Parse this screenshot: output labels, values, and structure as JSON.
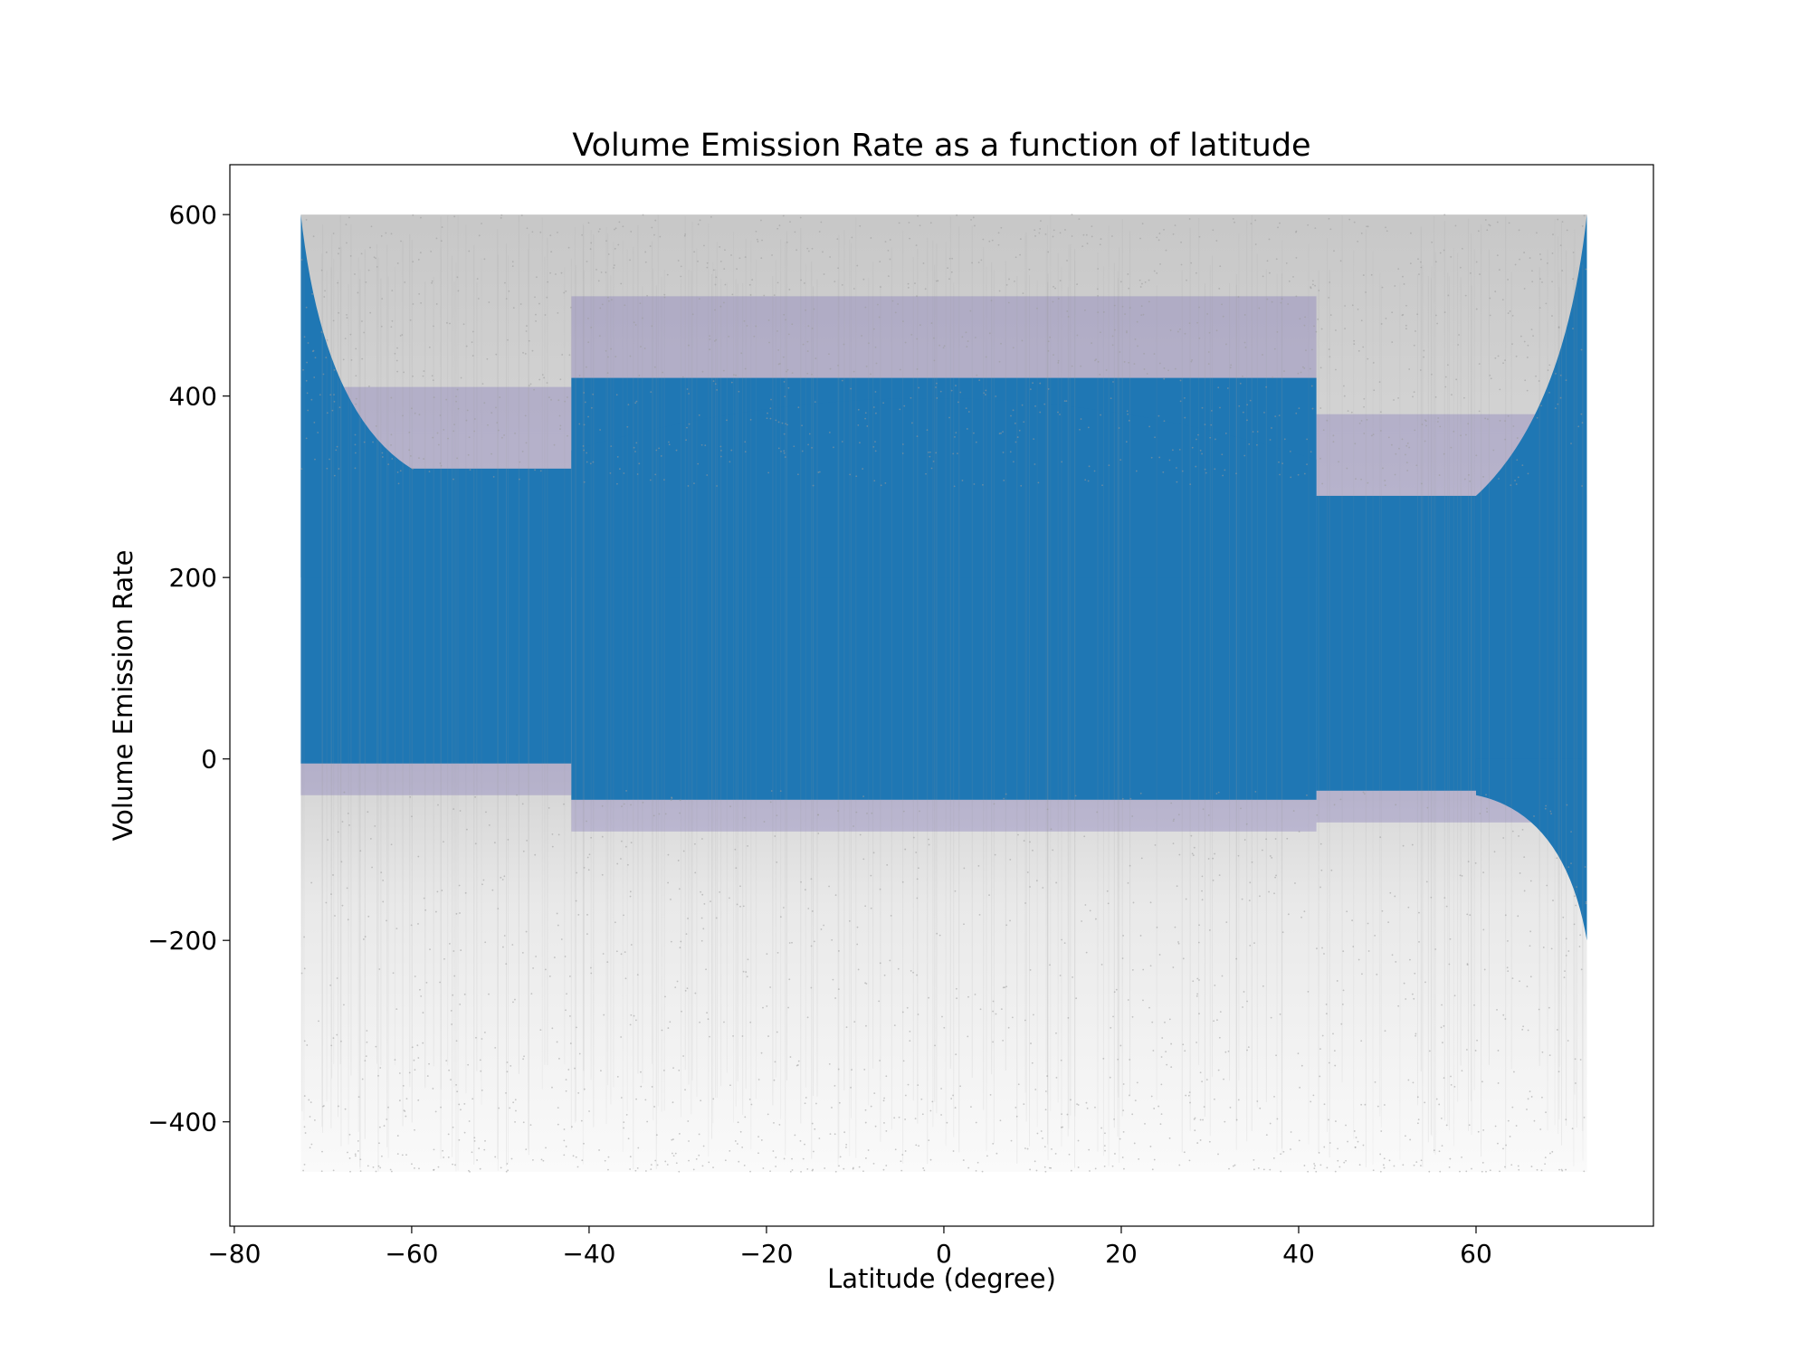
{
  "chart_data": {
    "type": "scatter",
    "title": "Volume Emission Rate as a function of latitude",
    "xlabel": "Latitude (degree)",
    "ylabel": "Volume Emission Rate",
    "xlim": [
      -80.5,
      80
    ],
    "ylim": [
      -515,
      655
    ],
    "xticks": [
      {
        "value": -80,
        "label": "−80"
      },
      {
        "value": -60,
        "label": "−60"
      },
      {
        "value": -40,
        "label": "−40"
      },
      {
        "value": -20,
        "label": "−20"
      },
      {
        "value": 0,
        "label": "0"
      },
      {
        "value": 20,
        "label": "20"
      },
      {
        "value": 40,
        "label": "40"
      },
      {
        "value": 60,
        "label": "60"
      }
    ],
    "yticks": [
      {
        "value": -400,
        "label": "−400"
      },
      {
        "value": -200,
        "label": "−200"
      },
      {
        "value": 0,
        "label": "0"
      },
      {
        "value": 200,
        "label": "200"
      },
      {
        "value": 400,
        "label": "400"
      },
      {
        "value": 600,
        "label": "600"
      }
    ],
    "grid": false,
    "legend": "none",
    "colors": {
      "points": "#1f77b4",
      "fringe": "#7b6fb8",
      "sparse": "#9a9a9a"
    },
    "series": [
      {
        "x_range": [
          -72.5,
          72.5
        ],
        "y_range": [
          -455,
          600
        ],
        "dense_core_regions": [
          {
            "lat_from": -72.5,
            "lat_to": -42,
            "y_from": -5,
            "y_to": 320
          },
          {
            "lat_from": -42,
            "lat_to": 42,
            "y_from": -45,
            "y_to": 420
          },
          {
            "lat_from": 42,
            "lat_to": 72.5,
            "y_from": -35,
            "y_to": 290
          }
        ]
      }
    ]
  }
}
